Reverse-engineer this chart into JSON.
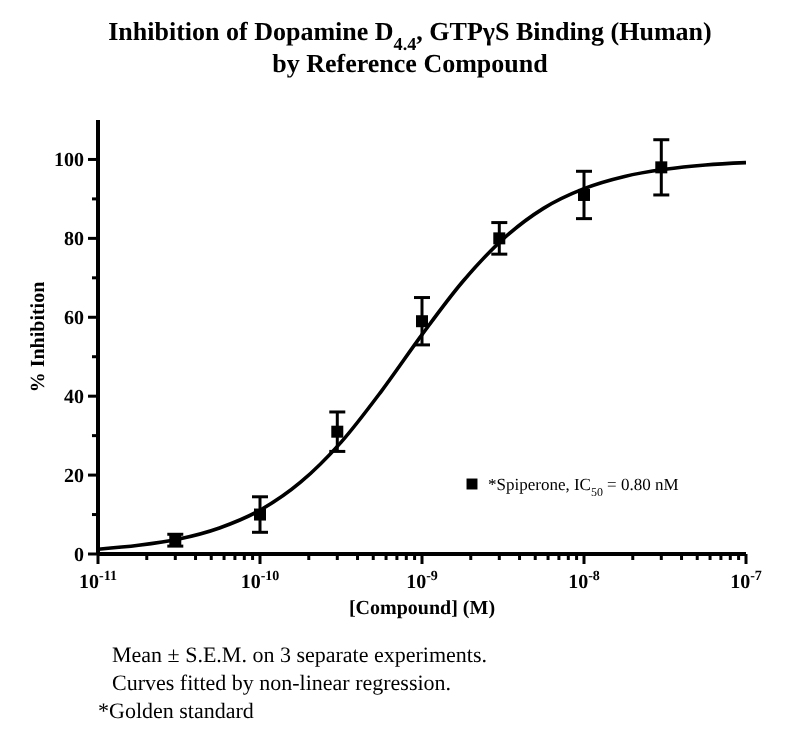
{
  "chart_data": {
    "type": "scatter",
    "title": "Inhibition of Dopamine D$_{4.4}$, GTPγS Binding (Human)\nby Reference Compound",
    "xlabel": "[Compound] (M)",
    "ylabel": "% Inhibition",
    "log": "x",
    "marker": "square",
    "legend": "bottom right",
    "grid": false,
    "xlim": [
      1e-11,
      1e-07
    ],
    "ylim": [
      0,
      110
    ],
    "xticks": [
      {
        "value": 1e-11,
        "label": "10$^{-11}$"
      },
      {
        "value": 2e-11,
        "label": null
      },
      {
        "value": 3e-11,
        "label": null
      },
      {
        "value": 4e-11,
        "label": null
      },
      {
        "value": 5e-11,
        "label": null
      },
      {
        "value": 6e-11,
        "label": null
      },
      {
        "value": 7e-11,
        "label": null
      },
      {
        "value": 8e-11,
        "label": null
      },
      {
        "value": 9e-11,
        "label": null
      },
      {
        "value": 1e-10,
        "label": "10$^{-10}$"
      },
      {
        "value": 2e-10,
        "label": null
      },
      {
        "value": 3e-10,
        "label": null
      },
      {
        "value": 4e-10,
        "label": null
      },
      {
        "value": 5e-10,
        "label": null
      },
      {
        "value": 6e-10,
        "label": null
      },
      {
        "value": 7e-10,
        "label": null
      },
      {
        "value": 8e-10,
        "label": null
      },
      {
        "value": 9e-10,
        "label": null
      },
      {
        "value": 1e-09,
        "label": "10$^{-9}$"
      },
      {
        "value": 2e-09,
        "label": null
      },
      {
        "value": 3e-09,
        "label": null
      },
      {
        "value": 4e-09,
        "label": null
      },
      {
        "value": 5e-09,
        "label": null
      },
      {
        "value": 6e-09,
        "label": null
      },
      {
        "value": 7e-09,
        "label": null
      },
      {
        "value": 8e-09,
        "label": null
      },
      {
        "value": 9e-09,
        "label": null
      },
      {
        "value": 1e-08,
        "label": "10$^{-8}$"
      },
      {
        "value": 2e-08,
        "label": null
      },
      {
        "value": 3e-08,
        "label": null
      },
      {
        "value": 4e-08,
        "label": null
      },
      {
        "value": 5e-08,
        "label": null
      },
      {
        "value": 6e-08,
        "label": null
      },
      {
        "value": 7e-08,
        "label": null
      },
      {
        "value": 8e-08,
        "label": null
      },
      {
        "value": 9e-08,
        "label": null
      },
      {
        "value": 1e-07,
        "label": "10$^{-7}$"
      }
    ],
    "yticks": [
      0,
      {
        "value": 10,
        "label": null
      },
      20,
      {
        "value": 30,
        "label": null
      },
      40,
      {
        "value": 50,
        "label": null
      },
      60,
      {
        "value": 70,
        "label": null
      },
      80,
      {
        "value": 90,
        "label": null
      },
      100
    ],
    "series": [
      {
        "name": "*Spiperone, IC$_{50}$ = 0.80 nM",
        "color": "#000000",
        "x": [
          3e-11,
          1e-10,
          3e-10,
          1e-09,
          3e-09,
          1e-08,
          3e-08
        ],
        "values": [
          3.5,
          10,
          31,
          59,
          80,
          91,
          98
        ],
        "errors": [
          1.5,
          4.5,
          5,
          6,
          4,
          6,
          7
        ]
      },
      {
        "type": "line",
        "color": "#000000",
        "line_style": "solid",
        "marker": "none",
        "x": [
          1e-11,
          1.78e-11,
          3.16e-11,
          5.62e-11,
          1e-10,
          1.78e-10,
          3.16e-10,
          5.62e-10,
          1e-09,
          1.78e-09,
          3.16e-09,
          5.62e-09,
          1e-08,
          1.78e-08,
          3.16e-08,
          5.62e-08,
          1e-07
        ],
        "values": [
          1.2,
          2.2,
          3.8,
          6.6,
          11.1,
          18.2,
          28.3,
          41.3,
          55.6,
          69,
          79.8,
          87.6,
          92.6,
          95.7,
          97.5,
          98.6,
          99.2
        ]
      }
    ],
    "annotations": [
      "Mean ± S.E.M. on 3 separate experiments.",
      "Curves fitted by non-linear regression.",
      "*Golden standard"
    ]
  }
}
